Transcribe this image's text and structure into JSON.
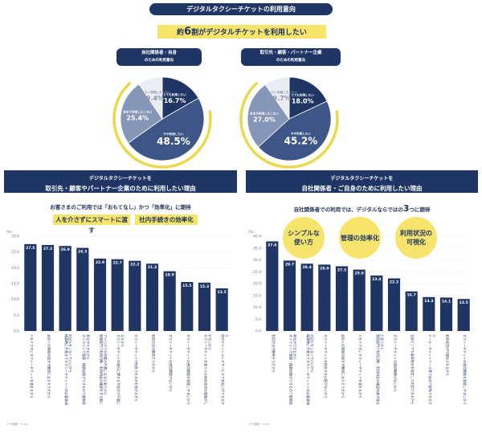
{
  "header": {
    "title": "デジタルタクシーチケットの利用意向",
    "headline_prefix": "約",
    "headline_number": "6",
    "headline_suffix": "割がデジタルチケットを利用したい"
  },
  "pie_titles": [
    [
      "自社関係者・自身",
      "のための利用意向"
    ],
    [
      "取引先・顧客・パートナー企業",
      "のための利用意向"
    ]
  ],
  "left_section": {
    "title_line1": "デジタルタクシーチケットを",
    "title_line2": "取引先・顧客やパートナー企業のために利用したい理由",
    "subtitle": "お客さまのご利用では「おもてなし」かつ「効率化」に期待",
    "band1": "人を介さずにスマートに渡す",
    "band2": "社内手続きの効率化",
    "axis_unit": "(%)",
    "source": "ミヤ調査・n=xx"
  },
  "right_section": {
    "title_line1": "デジタルタクシーチケットを",
    "title_line2": "自社関係者・ご自身のために利用したい理由",
    "subtitle_prefix": "自社関係者での利用では、デジタルならではの",
    "subtitle_number": "3",
    "subtitle_suffix": "つに期待",
    "bubbles": [
      [
        "シンプルな",
        "使い方"
      ],
      [
        "管理の効率化"
      ],
      [
        "利用状況の",
        "可視化"
      ]
    ],
    "axis_unit": "(%)",
    "source": "ミヤ調査・n=xx"
  },
  "chart_data": [
    {
      "type": "pie",
      "title": "自社関係者・自身のための利用意向",
      "slices": [
        {
          "label": "とても利用したい",
          "value": 16.7,
          "color": "#1f3564"
        },
        {
          "label": "やや利用したい",
          "value": 48.5,
          "color": "#3d5587"
        },
        {
          "label": "あまり利用したくない",
          "value": 25.4,
          "color": "#8696b6"
        },
        {
          "label": "まったく利用したくない",
          "value": 9.4,
          "color": "#e9ecf2"
        }
      ],
      "ring_color": "#ecd84c"
    },
    {
      "type": "pie",
      "title": "取引先・顧客・パートナー企業のための利用意向",
      "slices": [
        {
          "label": "とても利用したい",
          "value": 18.0,
          "color": "#1f3564"
        },
        {
          "label": "やや利用したい",
          "value": 45.2,
          "color": "#3d5587"
        },
        {
          "label": "あまり利用したくない",
          "value": 27.0,
          "color": "#8696b6"
        },
        {
          "label": "まったく利用したくない",
          "value": 9.7,
          "color": "#e9ecf2"
        }
      ],
      "ring_color": "#ecd84c"
    },
    {
      "type": "bar",
      "ylim": [
        0,
        30
      ],
      "yticks": [
        0,
        5,
        10,
        15,
        20,
        25,
        30
      ],
      "bar_color": "#1f3564",
      "values": [
        27.5,
        27.2,
        26.9,
        26.3,
        22.9,
        22.7,
        22.2,
        21.3,
        18.9,
        15.5,
        15.3,
        13.5
      ],
      "value_labels": [
        "27.5",
        "27.2",
        "26.9",
        "26.3",
        "22.9",
        "22.7",
        "22.2",
        "21.3",
        "18.9",
        "15.5",
        "15.3",
        "13.5"
      ],
      "categories": [
        "人を介さずにタクシーチケットを渡せるから",
        "会社への事後手続きが簡単になりそうだから",
        "精算時に手書きでタクシーチケットへの必要事項の記入をしなくていいから",
        "オンラインで管理・精算処理ができるので業務効率化ができるから",
        "管理部門で利用日時・利用料金の確認をする際にアナログでの作業が不要になると思うから",
        "タクシーチケットの発行に関する手続きが不要になるから",
        "タクシーチケットが紛失されるのを防げるから",
        "利用方法が簡単そうだから",
        "タクシーチケットの使用期限がないから",
        "タクシーチケットの使用期限を管理しやすいから",
        "タクシーチケットを使う人の利用状況の管理がしやすいから",
        "他のキャッシュレスサービスで支払いができるから"
      ]
    },
    {
      "type": "bar",
      "ylim": [
        0,
        40
      ],
      "yticks": [
        0,
        5,
        10,
        15,
        20,
        25,
        30,
        35,
        40
      ],
      "bar_color": "#1f3564",
      "values": [
        37.8,
        29.7,
        28.4,
        28.0,
        27.3,
        25.9,
        23.4,
        22.2,
        16.7,
        14.3,
        14.1,
        13.5
      ],
      "value_labels": [
        "37.8",
        "29.7",
        "28.4",
        "28.0",
        "27.3",
        "25.9",
        "23.4",
        "22.2",
        "16.7",
        "14.3",
        "14.1",
        "13.5"
      ],
      "categories": [
        "利用方法が簡単そうだから",
        "オンラインで管理・精算処理ができるので業務効率化ができるから",
        "精算時に手書きでタクシーチケットへの必要事項の記入をしなくていいから",
        "タクシーチケットを紛失する心配がないから",
        "会社への事後手続きが簡単になりそうだから",
        "人を介さずにタクシーチケットを渡せるから",
        "管理部門で利用日時・利用料金の確認作業が減ると思うから",
        "タクシーチケットの使用期限がないから",
        "全部どこでも乗車地点を設定して利用できるから",
        "メール・チャットツール等で自分で配布できるから",
        "利用状況が可視化されるから",
        "タクシーチケットの使用期限を管理しやすいから"
      ]
    }
  ]
}
